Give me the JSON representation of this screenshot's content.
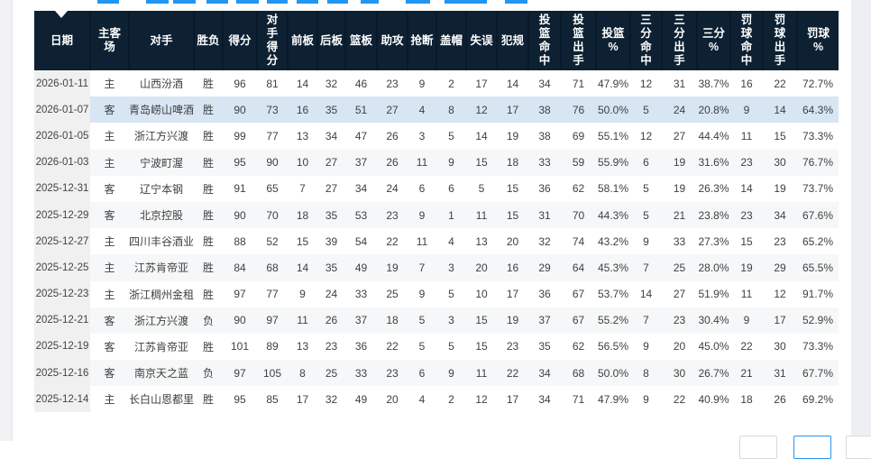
{
  "colors": {
    "header_bg": "#0d2133",
    "accent_blue": "#2196f3",
    "selected_row_bg": "#d8e6f3",
    "stripe_bg": "#f6f7f8",
    "date_column_bg": "#f0f0f1"
  },
  "icons": {
    "header_caret": "caret-down-white"
  },
  "table": {
    "columns": [
      "日期",
      "主客\n场",
      "对手",
      "胜负",
      "得分",
      "对\n手\n得\n分",
      "前板",
      "后板",
      "篮板",
      "助攻",
      "抢断",
      "盖帽",
      "失误",
      "犯规",
      "投\n篮\n命\n中",
      "投\n篮\n出\n手",
      "投篮\n%",
      "三\n分\n命\n中",
      "三\n分\n出\n手",
      "三分\n%",
      "罚\n球\n命\n中",
      "罚\n球\n出\n手",
      "罚球\n%"
    ],
    "selected_row_index": 1,
    "rows": [
      [
        "2026-01-11",
        "主",
        "山西汾酒",
        "胜",
        "96",
        "81",
        "14",
        "32",
        "46",
        "23",
        "9",
        "2",
        "17",
        "14",
        "34",
        "71",
        "47.9%",
        "12",
        "31",
        "38.7%",
        "16",
        "22",
        "72.7%"
      ],
      [
        "2026-01-07",
        "客",
        "青岛崂山啤酒",
        "胜",
        "90",
        "73",
        "16",
        "35",
        "51",
        "27",
        "4",
        "8",
        "12",
        "17",
        "38",
        "76",
        "50.0%",
        "5",
        "24",
        "20.8%",
        "9",
        "14",
        "64.3%"
      ],
      [
        "2026-01-05",
        "主",
        "浙江方兴渡",
        "胜",
        "99",
        "77",
        "13",
        "34",
        "47",
        "26",
        "3",
        "5",
        "14",
        "19",
        "38",
        "69",
        "55.1%",
        "12",
        "27",
        "44.4%",
        "11",
        "15",
        "73.3%"
      ],
      [
        "2026-01-03",
        "主",
        "宁波町渥",
        "胜",
        "95",
        "90",
        "10",
        "27",
        "37",
        "26",
        "11",
        "9",
        "15",
        "18",
        "33",
        "59",
        "55.9%",
        "6",
        "19",
        "31.6%",
        "23",
        "30",
        "76.7%"
      ],
      [
        "2025-12-31",
        "客",
        "辽宁本钢",
        "胜",
        "91",
        "65",
        "7",
        "27",
        "34",
        "24",
        "6",
        "6",
        "5",
        "15",
        "36",
        "62",
        "58.1%",
        "5",
        "19",
        "26.3%",
        "14",
        "19",
        "73.7%"
      ],
      [
        "2025-12-29",
        "客",
        "北京控股",
        "胜",
        "90",
        "70",
        "18",
        "35",
        "53",
        "23",
        "9",
        "1",
        "11",
        "15",
        "31",
        "70",
        "44.3%",
        "5",
        "21",
        "23.8%",
        "23",
        "34",
        "67.6%"
      ],
      [
        "2025-12-27",
        "主",
        "四川丰谷酒业",
        "胜",
        "88",
        "52",
        "15",
        "39",
        "54",
        "22",
        "11",
        "4",
        "13",
        "20",
        "32",
        "74",
        "43.2%",
        "9",
        "33",
        "27.3%",
        "15",
        "23",
        "65.2%"
      ],
      [
        "2025-12-25",
        "主",
        "江苏肯帝亚",
        "胜",
        "84",
        "68",
        "14",
        "35",
        "49",
        "19",
        "7",
        "3",
        "20",
        "16",
        "29",
        "64",
        "45.3%",
        "7",
        "25",
        "28.0%",
        "19",
        "29",
        "65.5%"
      ],
      [
        "2025-12-23",
        "主",
        "浙江稠州金租",
        "胜",
        "97",
        "77",
        "9",
        "24",
        "33",
        "25",
        "9",
        "5",
        "10",
        "17",
        "36",
        "67",
        "53.7%",
        "14",
        "27",
        "51.9%",
        "11",
        "12",
        "91.7%"
      ],
      [
        "2025-12-21",
        "客",
        "浙江方兴渡",
        "负",
        "90",
        "97",
        "11",
        "26",
        "37",
        "18",
        "5",
        "3",
        "15",
        "19",
        "37",
        "67",
        "55.2%",
        "7",
        "23",
        "30.4%",
        "9",
        "17",
        "52.9%"
      ],
      [
        "2025-12-19",
        "客",
        "江苏肯帝亚",
        "胜",
        "101",
        "89",
        "13",
        "23",
        "36",
        "22",
        "5",
        "5",
        "15",
        "23",
        "35",
        "62",
        "56.5%",
        "9",
        "20",
        "45.0%",
        "22",
        "30",
        "73.3%"
      ],
      [
        "2025-12-16",
        "客",
        "南京天之蓝",
        "负",
        "97",
        "105",
        "8",
        "25",
        "33",
        "23",
        "6",
        "9",
        "11",
        "22",
        "34",
        "68",
        "50.0%",
        "8",
        "30",
        "26.7%",
        "21",
        "31",
        "67.7%"
      ],
      [
        "2025-12-14",
        "主",
        "长白山恩都里",
        "胜",
        "95",
        "85",
        "17",
        "32",
        "49",
        "20",
        "4",
        "2",
        "12",
        "17",
        "34",
        "71",
        "47.9%",
        "9",
        "22",
        "40.9%",
        "18",
        "26",
        "69.2%"
      ]
    ]
  },
  "pagination": {
    "buttons": [
      {
        "active": false
      },
      {
        "active": true
      },
      {
        "active": false
      }
    ]
  }
}
